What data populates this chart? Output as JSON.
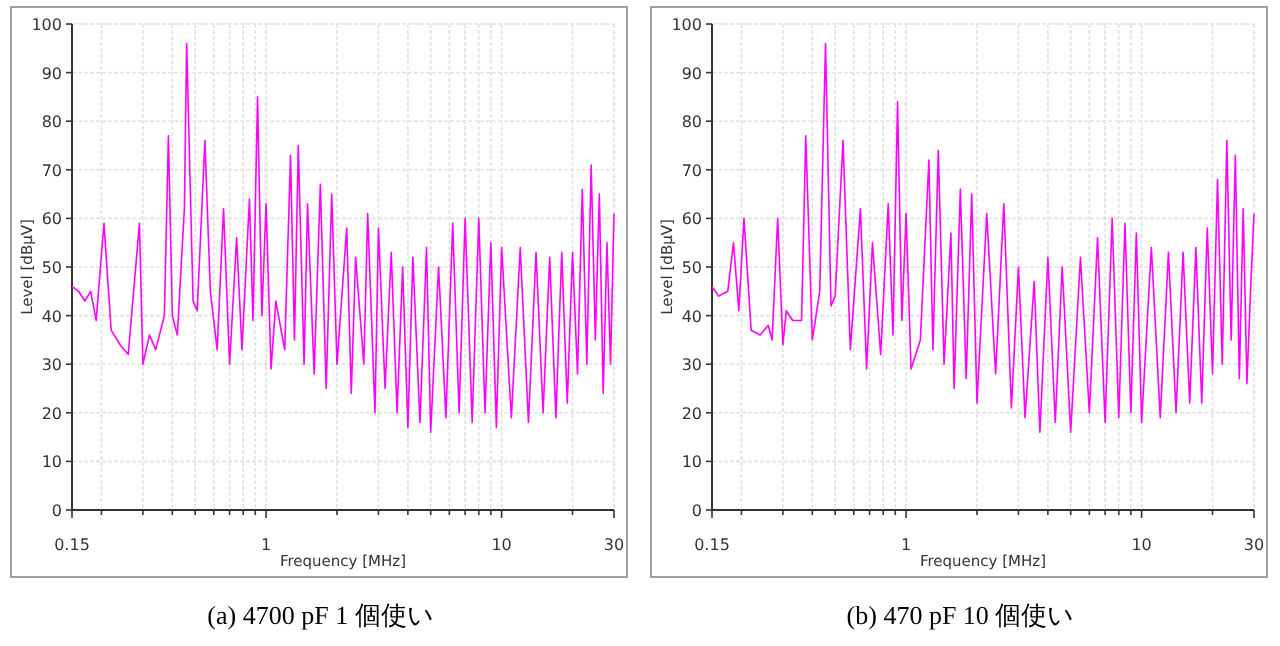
{
  "chart_data": [
    {
      "type": "line",
      "title": "(a) 4700 pF 1 個使い",
      "xlabel": "Frequency [MHz]",
      "ylabel": "Level [dBμV]",
      "log": "x",
      "grid": true,
      "xlim": [
        0.15,
        30
      ],
      "ylim": [
        0,
        100
      ],
      "xticks": [
        0.15,
        {
          "value": 0.2,
          "label": null
        },
        {
          "value": 0.3,
          "label": null
        },
        {
          "value": 0.4,
          "label": null
        },
        {
          "value": 0.5,
          "label": null
        },
        {
          "value": 0.6,
          "label": null
        },
        {
          "value": 0.7,
          "label": null
        },
        {
          "value": 0.8,
          "label": null
        },
        {
          "value": 0.9,
          "label": null
        },
        1,
        {
          "value": 2,
          "label": null
        },
        {
          "value": 3,
          "label": null
        },
        {
          "value": 4,
          "label": null
        },
        {
          "value": 5,
          "label": null
        },
        {
          "value": 6,
          "label": null
        },
        {
          "value": 7,
          "label": null
        },
        {
          "value": 8,
          "label": null
        },
        {
          "value": 9,
          "label": null
        },
        10,
        {
          "value": 20,
          "label": null
        },
        30
      ],
      "yticks": [
        0,
        10,
        20,
        30,
        40,
        50,
        60,
        70,
        80,
        90,
        100
      ],
      "series": [
        {
          "color": "#ff00ff",
          "x": [
            0.15,
            0.16,
            0.17,
            0.18,
            0.19,
            0.205,
            0.22,
            0.24,
            0.26,
            0.29,
            0.3,
            0.32,
            0.34,
            0.37,
            0.385,
            0.4,
            0.42,
            0.45,
            0.46,
            0.49,
            0.51,
            0.55,
            0.58,
            0.62,
            0.66,
            0.7,
            0.75,
            0.79,
            0.85,
            0.88,
            0.92,
            0.96,
            1.0,
            1.05,
            1.1,
            1.2,
            1.27,
            1.32,
            1.37,
            1.45,
            1.5,
            1.6,
            1.7,
            1.8,
            1.9,
            2.0,
            2.2,
            2.3,
            2.4,
            2.6,
            2.7,
            2.9,
            3.0,
            3.2,
            3.4,
            3.6,
            3.8,
            4.0,
            4.2,
            4.5,
            4.8,
            5.0,
            5.4,
            5.8,
            6.2,
            6.6,
            7.0,
            7.5,
            8.0,
            8.5,
            9.0,
            9.5,
            10,
            11,
            12,
            13,
            14,
            15,
            16,
            17,
            18,
            19,
            20,
            21,
            22,
            23,
            24,
            25,
            26,
            27,
            28,
            29,
            30
          ],
          "values": [
            46,
            45,
            43,
            45,
            39,
            59,
            37,
            34,
            32,
            59,
            30,
            36,
            33,
            40,
            77,
            40,
            36,
            62,
            96,
            43,
            41,
            76,
            45,
            33,
            62,
            30,
            56,
            33,
            64,
            39,
            85,
            40,
            63,
            29,
            43,
            33,
            73,
            35,
            75,
            30,
            63,
            28,
            67,
            25,
            65,
            30,
            58,
            24,
            52,
            30,
            61,
            20,
            58,
            25,
            53,
            20,
            50,
            17,
            52,
            18,
            54,
            16,
            50,
            19,
            59,
            20,
            60,
            18,
            60,
            20,
            55,
            17,
            54,
            19,
            54,
            18,
            53,
            20,
            52,
            19,
            53,
            22,
            53,
            28,
            66,
            30,
            71,
            35,
            65,
            24,
            55,
            30,
            61
          ]
        }
      ]
    },
    {
      "type": "line",
      "title": "(b) 470 pF 10 個使い",
      "xlabel": "Frequency [MHz]",
      "ylabel": "Level [dBμV]",
      "log": "x",
      "grid": true,
      "xlim": [
        0.15,
        30
      ],
      "ylim": [
        0,
        100
      ],
      "xticks": [
        0.15,
        {
          "value": 0.2,
          "label": null
        },
        {
          "value": 0.3,
          "label": null
        },
        {
          "value": 0.4,
          "label": null
        },
        {
          "value": 0.5,
          "label": null
        },
        {
          "value": 0.6,
          "label": null
        },
        {
          "value": 0.7,
          "label": null
        },
        {
          "value": 0.8,
          "label": null
        },
        {
          "value": 0.9,
          "label": null
        },
        1,
        {
          "value": 2,
          "label": null
        },
        {
          "value": 3,
          "label": null
        },
        {
          "value": 4,
          "label": null
        },
        {
          "value": 5,
          "label": null
        },
        {
          "value": 6,
          "label": null
        },
        {
          "value": 7,
          "label": null
        },
        {
          "value": 8,
          "label": null
        },
        {
          "value": 9,
          "label": null
        },
        10,
        {
          "value": 20,
          "label": null
        },
        30
      ],
      "yticks": [
        0,
        10,
        20,
        30,
        40,
        50,
        60,
        70,
        80,
        90,
        100
      ],
      "series": [
        {
          "color": "#ff00ff",
          "x": [
            0.15,
            0.16,
            0.175,
            0.185,
            0.195,
            0.205,
            0.22,
            0.24,
            0.26,
            0.27,
            0.285,
            0.3,
            0.31,
            0.33,
            0.36,
            0.375,
            0.4,
            0.43,
            0.455,
            0.48,
            0.5,
            0.54,
            0.58,
            0.64,
            0.68,
            0.72,
            0.78,
            0.84,
            0.88,
            0.92,
            0.96,
            1.0,
            1.05,
            1.15,
            1.25,
            1.3,
            1.37,
            1.45,
            1.55,
            1.6,
            1.7,
            1.8,
            1.9,
            2.0,
            2.2,
            2.4,
            2.6,
            2.8,
            3.0,
            3.2,
            3.5,
            3.7,
            4.0,
            4.3,
            4.6,
            5.0,
            5.5,
            6.0,
            6.5,
            7.0,
            7.5,
            8.0,
            8.5,
            9.0,
            9.5,
            10,
            11,
            12,
            13,
            14,
            15,
            16,
            17,
            18,
            19,
            20,
            21,
            22,
            23,
            24,
            25,
            26,
            27,
            28,
            29,
            30
          ],
          "values": [
            46,
            44,
            45,
            55,
            41,
            60,
            37,
            36,
            38,
            35,
            60,
            34,
            41,
            39,
            39,
            77,
            35,
            45,
            96,
            42,
            44,
            76,
            33,
            62,
            29,
            55,
            32,
            63,
            36,
            84,
            39,
            61,
            29,
            35,
            72,
            33,
            74,
            30,
            57,
            25,
            66,
            27,
            65,
            22,
            61,
            28,
            63,
            21,
            50,
            19,
            47,
            16,
            52,
            18,
            50,
            16,
            52,
            20,
            56,
            18,
            60,
            19,
            59,
            20,
            57,
            18,
            54,
            19,
            53,
            20,
            53,
            22,
            54,
            22,
            58,
            28,
            68,
            30,
            76,
            35,
            73,
            27,
            62,
            26,
            45,
            61
          ]
        }
      ]
    }
  ]
}
